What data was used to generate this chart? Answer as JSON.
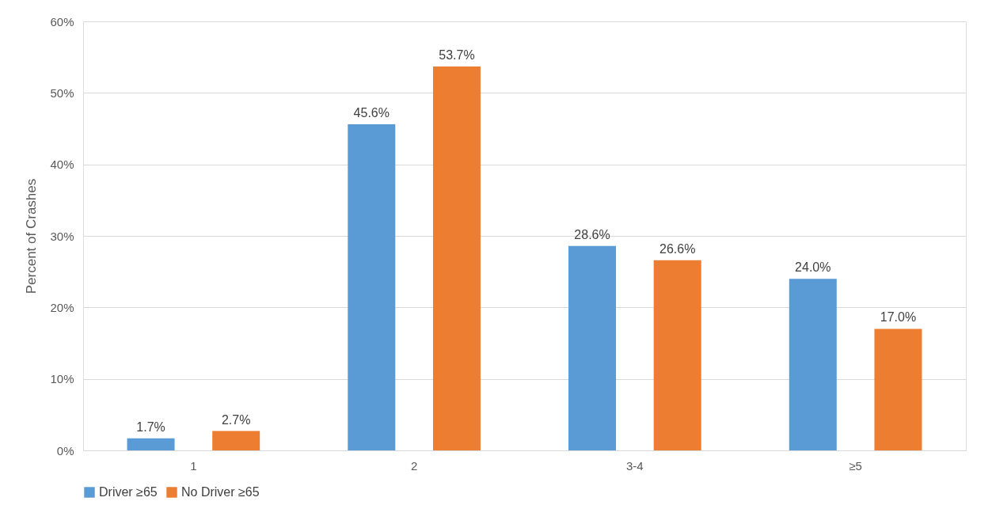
{
  "chart_data": {
    "type": "bar",
    "ylabel": "Percent of Crashes",
    "categories": [
      "1",
      "2",
      "3-4",
      "≥5"
    ],
    "series": [
      {
        "name": "Driver ≥65",
        "color": "#5b9bd5",
        "values": [
          1.7,
          45.6,
          28.6,
          24.0
        ],
        "value_labels": [
          "1.7%",
          "45.6%",
          "28.6%",
          "24.0%"
        ]
      },
      {
        "name": "No Driver ≥65",
        "color": "#ed7d31",
        "values": [
          2.7,
          53.7,
          26.6,
          17.0
        ],
        "value_labels": [
          "2.7%",
          "53.7%",
          "26.6%",
          "17.0%"
        ]
      }
    ],
    "ylim": [
      0,
      60
    ],
    "yticks": [
      {
        "value": 0,
        "label": "0%"
      },
      {
        "value": 10,
        "label": "10%"
      },
      {
        "value": 20,
        "label": "20%"
      },
      {
        "value": 30,
        "label": "30%"
      },
      {
        "value": 40,
        "label": "40%"
      },
      {
        "value": 50,
        "label": "50%"
      },
      {
        "value": 60,
        "label": "60%"
      }
    ],
    "grid": "y",
    "legend": "bottom"
  }
}
